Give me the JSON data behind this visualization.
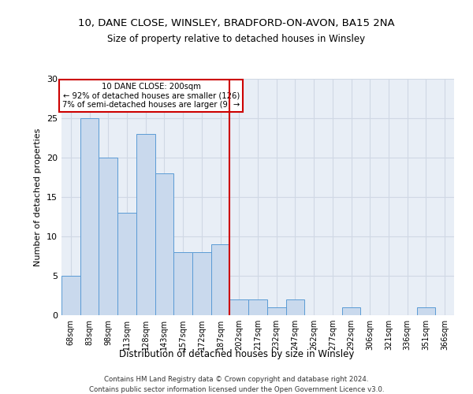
{
  "title1": "10, DANE CLOSE, WINSLEY, BRADFORD-ON-AVON, BA15 2NA",
  "title2": "Size of property relative to detached houses in Winsley",
  "xlabel": "Distribution of detached houses by size in Winsley",
  "ylabel": "Number of detached properties",
  "categories": [
    "68sqm",
    "83sqm",
    "98sqm",
    "113sqm",
    "128sqm",
    "143sqm",
    "157sqm",
    "172sqm",
    "187sqm",
    "202sqm",
    "217sqm",
    "232sqm",
    "247sqm",
    "262sqm",
    "277sqm",
    "292sqm",
    "306sqm",
    "321sqm",
    "336sqm",
    "351sqm",
    "366sqm"
  ],
  "values": [
    5,
    25,
    20,
    13,
    23,
    18,
    8,
    8,
    9,
    2,
    2,
    1,
    2,
    0,
    0,
    1,
    0,
    0,
    0,
    1,
    0
  ],
  "bar_color": "#c9d9ed",
  "bar_edge_color": "#5b9bd5",
  "grid_color": "#d0d8e4",
  "background_color": "#e8eef6",
  "vline_color": "#cc0000",
  "annotation_line1": "10 DANE CLOSE: 200sqm",
  "annotation_line2": "← 92% of detached houses are smaller (126)",
  "annotation_line3": "7% of semi-detached houses are larger (9) →",
  "annotation_box_color": "#cc0000",
  "ylim": [
    0,
    30
  ],
  "yticks": [
    0,
    5,
    10,
    15,
    20,
    25,
    30
  ],
  "footer1": "Contains HM Land Registry data © Crown copyright and database right 2024.",
  "footer2": "Contains public sector information licensed under the Open Government Licence v3.0."
}
